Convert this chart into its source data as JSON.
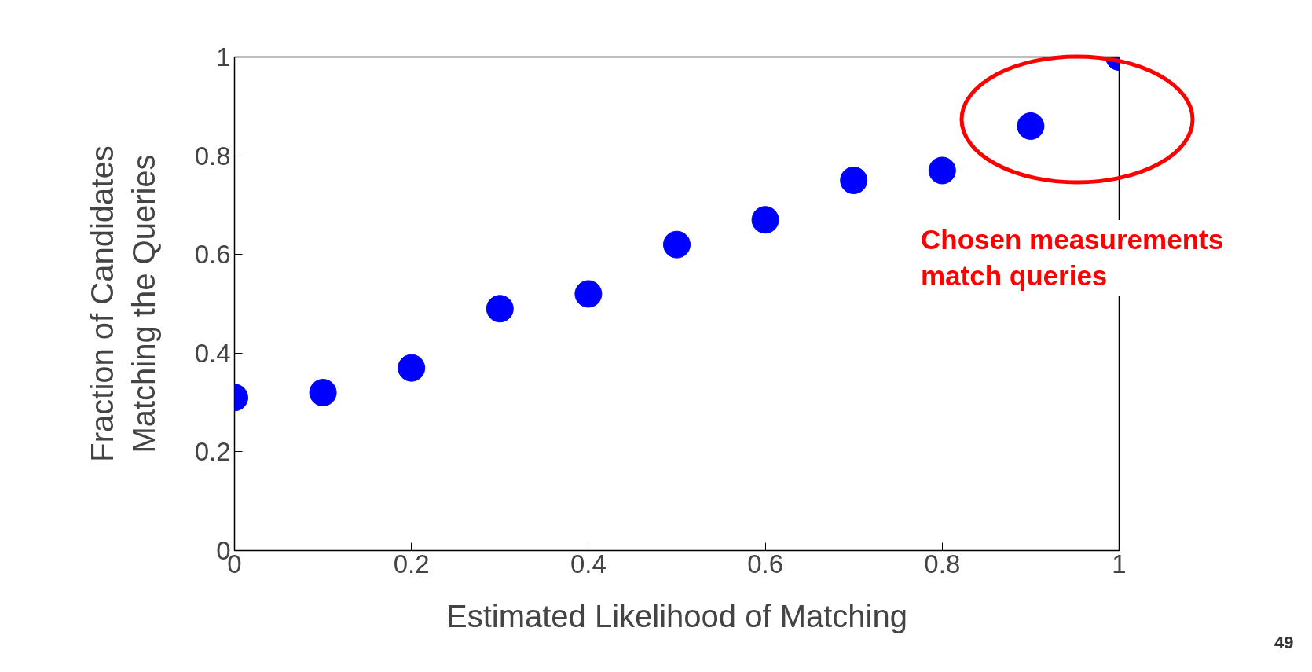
{
  "chart_data": {
    "type": "scatter",
    "xlabel": "Estimated Likelihood of Matching",
    "ylabel": "Fraction of Candidates\nMatching the Queries",
    "x": [
      0,
      0.1,
      0.2,
      0.3,
      0.4,
      0.5,
      0.6,
      0.7,
      0.8,
      0.9,
      1
    ],
    "series": [
      {
        "color": "#0000ff",
        "values": [
          0.31,
          0.32,
          0.37,
          0.49,
          0.52,
          0.62,
          0.67,
          0.75,
          0.77,
          0.86,
          1.0
        ]
      }
    ],
    "xlim": [
      0,
      1
    ],
    "ylim": [
      0,
      1
    ],
    "xticks": [
      0,
      0.2,
      0.4,
      0.6,
      0.8,
      1
    ],
    "yticks": [
      0,
      0.2,
      0.4,
      0.6,
      0.8,
      1
    ],
    "marker": "circle",
    "grid": false,
    "annotations": [
      "Chosen measurements\nmatch queries",
      "49"
    ]
  }
}
